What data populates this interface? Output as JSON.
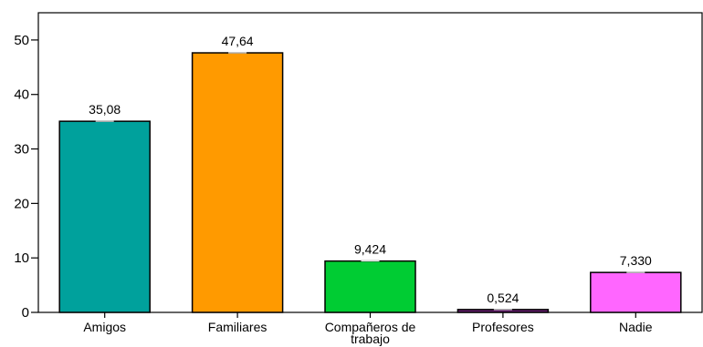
{
  "chart_data": {
    "type": "bar",
    "title": "",
    "xlabel": "",
    "ylabel": "",
    "ylim": [
      0,
      55
    ],
    "yticks": [
      0,
      10,
      20,
      30,
      40,
      50
    ],
    "grid": false,
    "categories": [
      "Amigos",
      "Familiares",
      "Compañeros de trabajo",
      "Profesores",
      "Nadie"
    ],
    "category_lines": [
      [
        "Amigos"
      ],
      [
        "Familiares"
      ],
      [
        "Compañeros de",
        "trabajo"
      ],
      [
        "Profesores"
      ],
      [
        "Nadie"
      ]
    ],
    "values": [
      35.08,
      47.64,
      9.424,
      0.524,
      7.33
    ],
    "value_labels": [
      "35,08",
      "47,64",
      "9,424",
      "0,524",
      "7,330"
    ],
    "colors": [
      "#00a19c",
      "#ff9a00",
      "#00cc33",
      "#6b1f73",
      "#ff66ff"
    ]
  }
}
